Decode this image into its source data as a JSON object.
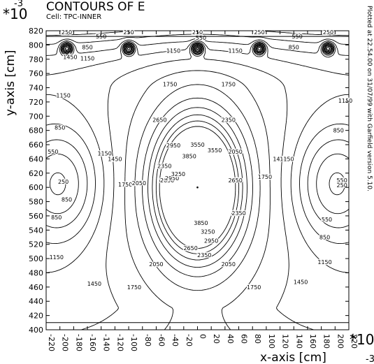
{
  "chart_data": {
    "type": "contour",
    "title": "CONTOURS OF E",
    "subtitle": "Cell: TPC-INNER",
    "exponent_top": "-3",
    "exponent_star": "*10",
    "xlabel": "x-axis [cm]",
    "ylabel": "y-axis [cm]",
    "x_exponent_star": "*10",
    "x_exponent": "-3",
    "side_note": "Plotted at 22.54.00 on 31/07/99 with Garfield version 5.10.",
    "xlim": [
      -220,
      220
    ],
    "ylim": [
      400,
      820
    ],
    "x_ticks": [
      -220,
      -200,
      -180,
      -160,
      -140,
      -120,
      -100,
      -80,
      -60,
      -40,
      -20,
      0,
      20,
      40,
      60,
      80,
      100,
      120,
      140,
      160,
      180,
      200,
      220
    ],
    "y_ticks": [
      400,
      420,
      440,
      460,
      480,
      500,
      520,
      540,
      560,
      580,
      600,
      620,
      640,
      660,
      680,
      700,
      720,
      740,
      760,
      780,
      800,
      820
    ],
    "grid": false,
    "contour_levels": [
      250,
      550,
      850,
      1150,
      1450,
      1750,
      2050,
      2350,
      2650,
      2950,
      3250,
      3550,
      3850
    ],
    "field_sources": {
      "center_wire": [
        0,
        600
      ],
      "top_wires_x": [
        -190,
        -100,
        0,
        90,
        190
      ],
      "top_wire_y": 795,
      "side_minima": [
        [
          -200,
          605
        ],
        [
          200,
          605
        ]
      ]
    },
    "contour_labels": [
      {
        "text": "250",
        "x": -190,
        "y": 818
      },
      {
        "text": "250",
        "x": -100,
        "y": 818
      },
      {
        "text": "250",
        "x": 0,
        "y": 818
      },
      {
        "text": "250",
        "x": 90,
        "y": 818
      },
      {
        "text": "250",
        "x": 190,
        "y": 818
      },
      {
        "text": "550",
        "x": -140,
        "y": 812
      },
      {
        "text": "550",
        "x": 5,
        "y": 810
      },
      {
        "text": "550",
        "x": 145,
        "y": 812
      },
      {
        "text": "850",
        "x": -160,
        "y": 797
      },
      {
        "text": "850",
        "x": 140,
        "y": 797
      },
      {
        "text": "1150",
        "x": -160,
        "y": 781
      },
      {
        "text": "1150",
        "x": -35,
        "y": 792
      },
      {
        "text": "1150",
        "x": 55,
        "y": 792
      },
      {
        "text": "1450",
        "x": -185,
        "y": 783
      },
      {
        "text": "1750",
        "x": -40,
        "y": 745
      },
      {
        "text": "1750",
        "x": 45,
        "y": 745
      },
      {
        "text": "1150",
        "x": -195,
        "y": 729
      },
      {
        "text": "1150",
        "x": 215,
        "y": 722
      },
      {
        "text": "850",
        "x": -200,
        "y": 684
      },
      {
        "text": "850",
        "x": 205,
        "y": 680
      },
      {
        "text": "550",
        "x": -210,
        "y": 650
      },
      {
        "text": "550",
        "x": 210,
        "y": 610
      },
      {
        "text": "250",
        "x": -195,
        "y": 608
      },
      {
        "text": "250",
        "x": 210,
        "y": 603
      },
      {
        "text": "550",
        "x": 188,
        "y": 555
      },
      {
        "text": "850",
        "x": -205,
        "y": 558
      },
      {
        "text": "850",
        "x": -190,
        "y": 583
      },
      {
        "text": "850",
        "x": 185,
        "y": 530
      },
      {
        "text": "1150",
        "x": -205,
        "y": 502
      },
      {
        "text": "1150",
        "x": 185,
        "y": 495
      },
      {
        "text": "1450",
        "x": -150,
        "y": 465
      },
      {
        "text": "1450",
        "x": 150,
        "y": 467
      },
      {
        "text": "1750",
        "x": -92,
        "y": 460
      },
      {
        "text": "1750",
        "x": 82,
        "y": 460
      },
      {
        "text": "1450",
        "x": -120,
        "y": 640
      },
      {
        "text": "1450",
        "x": 120,
        "y": 640
      },
      {
        "text": "1150",
        "x": -135,
        "y": 648
      },
      {
        "text": "1150",
        "x": 130,
        "y": 640
      },
      {
        "text": "1750",
        "x": -105,
        "y": 604
      },
      {
        "text": "1750",
        "x": 98,
        "y": 615
      },
      {
        "text": "2050",
        "x": -85,
        "y": 606
      },
      {
        "text": "2050",
        "x": 55,
        "y": 650
      },
      {
        "text": "2050",
        "x": -60,
        "y": 492
      },
      {
        "text": "2050",
        "x": 45,
        "y": 492
      },
      {
        "text": "2350",
        "x": 45,
        "y": 695
      },
      {
        "text": "2350",
        "x": -48,
        "y": 630
      },
      {
        "text": "2350",
        "x": 60,
        "y": 564
      },
      {
        "text": "2350",
        "x": 10,
        "y": 505
      },
      {
        "text": "2650",
        "x": -55,
        "y": 695
      },
      {
        "text": "2650",
        "x": -44,
        "y": 610
      },
      {
        "text": "2650",
        "x": 55,
        "y": 610
      },
      {
        "text": "2650",
        "x": -10,
        "y": 515
      },
      {
        "text": "2950",
        "x": -35,
        "y": 659
      },
      {
        "text": "2950",
        "x": -37,
        "y": 613
      },
      {
        "text": "2950",
        "x": 20,
        "y": 525
      },
      {
        "text": "3250",
        "x": -28,
        "y": 619
      },
      {
        "text": "3250",
        "x": 15,
        "y": 538
      },
      {
        "text": "3550",
        "x": 0,
        "y": 660
      },
      {
        "text": "3550",
        "x": 25,
        "y": 652
      },
      {
        "text": "3850",
        "x": -12,
        "y": 644
      },
      {
        "text": "3850",
        "x": 5,
        "y": 550
      }
    ]
  }
}
